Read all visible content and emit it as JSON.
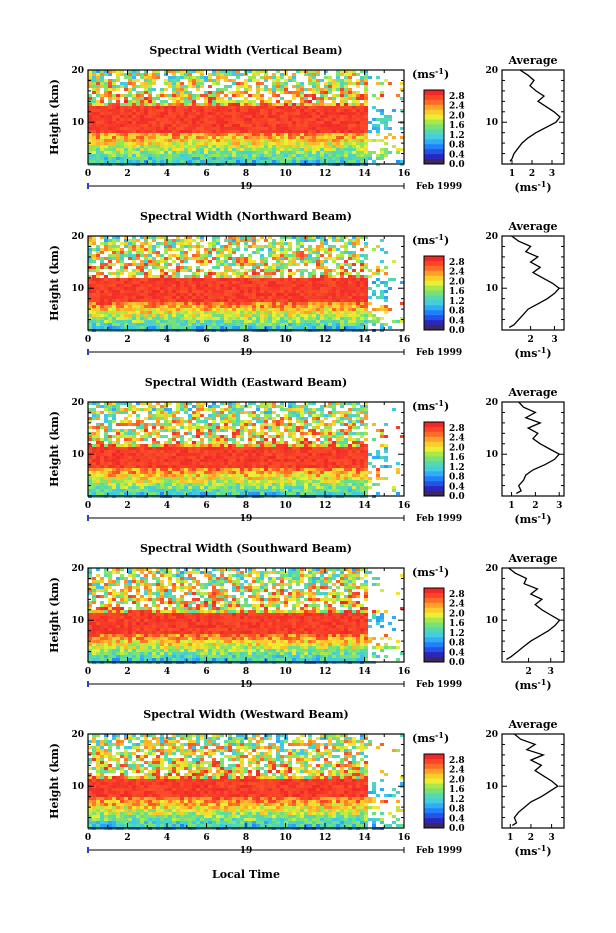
{
  "figure": {
    "date_label": "Feb 1999",
    "day_label": "19",
    "xlabel": "Local Time",
    "ylabel": "Height (km)",
    "colorbar_unit": "(ms",
    "colorbar_unit_exp": "-1",
    "colorbar_unit_close": ")",
    "colorbar_ticks": [
      "2.8",
      "2.4",
      "2.0",
      "1.6",
      "1.2",
      "0.8",
      "0.4",
      "0.0"
    ],
    "profile_title": "Average",
    "profile_xlabel": "(ms",
    "profile_xlabel_exp": "-1",
    "profile_xlabel_close": ")"
  },
  "chart_data": [
    {
      "type": "heatmap",
      "title": "Spectral Width (Vertical Beam)",
      "xlabel": "Local Time",
      "ylabel": "Height (km)",
      "x_ticks": [
        "0",
        "2",
        "4",
        "6",
        "8",
        "10",
        "12",
        "14",
        "16"
      ],
      "y_ticks": [
        "20",
        "10"
      ],
      "xlim": [
        0,
        16
      ],
      "ylim": [
        2,
        20
      ],
      "colorbar": {
        "label": "(ms-1)",
        "range": [
          0.0,
          3.0
        ],
        "colormap": "rainbow"
      },
      "field": {
        "core_height_km": [
          8.5,
          13.5
        ],
        "core_value": 2.9,
        "sparse_after_hour": 14
      },
      "average_profile": {
        "title": "Average",
        "x_ticks": [
          "1",
          "2",
          "3"
        ],
        "xlim": [
          0.5,
          3.6
        ],
        "height_km": [
          2.5,
          3,
          4,
          5,
          6,
          7,
          8,
          9,
          10,
          11,
          12,
          13,
          14,
          15,
          16,
          17,
          18,
          19,
          20
        ],
        "width": [
          0.9,
          1.0,
          1.1,
          1.3,
          1.5,
          1.8,
          2.2,
          2.7,
          3.2,
          3.4,
          3.1,
          2.7,
          2.3,
          2.6,
          2.2,
          1.9,
          2.1,
          1.8,
          1.4
        ]
      }
    },
    {
      "type": "heatmap",
      "title": "Spectral Width (Northward Beam)",
      "xlabel": "Local Time",
      "ylabel": "Height (km)",
      "x_ticks": [
        "0",
        "2",
        "4",
        "6",
        "8",
        "10",
        "12",
        "14",
        "16"
      ],
      "y_ticks": [
        "20",
        "10"
      ],
      "xlim": [
        0,
        16
      ],
      "ylim": [
        2,
        20
      ],
      "colorbar": {
        "label": "(ms-1)",
        "range": [
          0.0,
          3.0
        ],
        "colormap": "rainbow"
      },
      "field": {
        "core_height_km": [
          7.5,
          12
        ],
        "core_value": 2.9,
        "sparse_after_hour": 14
      },
      "average_profile": {
        "title": "Average",
        "x_ticks": [
          "2",
          "3"
        ],
        "xlim": [
          0.8,
          3.4
        ],
        "height_km": [
          2.5,
          3,
          4,
          5,
          6,
          7,
          8,
          9,
          10,
          11,
          12,
          13,
          14,
          15,
          16,
          17,
          18,
          19,
          20
        ],
        "width": [
          1.1,
          1.3,
          1.5,
          1.7,
          1.9,
          2.3,
          2.7,
          3.0,
          3.2,
          2.9,
          2.5,
          2.1,
          2.4,
          2.0,
          2.3,
          1.8,
          2.0,
          1.5,
          1.2
        ]
      }
    },
    {
      "type": "heatmap",
      "title": "Spectral Width (Eastward Beam)",
      "xlabel": "Local Time",
      "ylabel": "Height (km)",
      "x_ticks": [
        "0",
        "2",
        "4",
        "6",
        "8",
        "10",
        "12",
        "14",
        "16"
      ],
      "y_ticks": [
        "20",
        "10"
      ],
      "xlim": [
        0,
        16
      ],
      "ylim": [
        2,
        20
      ],
      "colorbar": {
        "label": "(ms-1)",
        "range": [
          0.0,
          3.0
        ],
        "colormap": "rainbow"
      },
      "field": {
        "core_height_km": [
          7.5,
          11.5
        ],
        "core_value": 2.9,
        "sparse_after_hour": 14
      },
      "average_profile": {
        "title": "Average",
        "x_ticks": [
          "1",
          "2",
          "3"
        ],
        "xlim": [
          0.6,
          3.2
        ],
        "height_km": [
          2.5,
          3,
          4,
          5,
          6,
          7,
          8,
          9,
          10,
          11,
          12,
          13,
          14,
          15,
          16,
          17,
          18,
          19,
          20
        ],
        "width": [
          1.2,
          1.4,
          1.3,
          1.5,
          1.6,
          1.9,
          2.4,
          2.8,
          3.0,
          2.6,
          2.2,
          1.9,
          2.1,
          1.7,
          2.2,
          1.6,
          2.0,
          1.5,
          1.3
        ]
      }
    },
    {
      "type": "heatmap",
      "title": "Spectral Width (Southward Beam)",
      "xlabel": "Local Time",
      "ylabel": "Height (km)",
      "x_ticks": [
        "0",
        "2",
        "4",
        "6",
        "8",
        "10",
        "12",
        "14",
        "16"
      ],
      "y_ticks": [
        "20",
        "10"
      ],
      "xlim": [
        0,
        16
      ],
      "ylim": [
        2,
        20
      ],
      "colorbar": {
        "label": "(ms-1)",
        "range": [
          0.0,
          3.0
        ],
        "colormap": "rainbow"
      },
      "field": {
        "core_height_km": [
          7.5,
          11.5
        ],
        "core_value": 2.9,
        "sparse_after_hour": 14
      },
      "average_profile": {
        "title": "Average",
        "x_ticks": [
          "2",
          "3"
        ],
        "xlim": [
          0.8,
          3.6
        ],
        "height_km": [
          2.5,
          3,
          4,
          5,
          6,
          7,
          8,
          9,
          10,
          11,
          12,
          13,
          14,
          15,
          16,
          17,
          18,
          19,
          20
        ],
        "width": [
          1.0,
          1.2,
          1.5,
          1.8,
          2.1,
          2.5,
          2.9,
          3.2,
          3.4,
          3.0,
          2.6,
          2.3,
          2.6,
          2.1,
          2.4,
          1.8,
          1.9,
          1.4,
          1.1
        ]
      }
    },
    {
      "type": "heatmap",
      "title": "Spectral Width (Westward Beam)",
      "xlabel": "Local Time",
      "ylabel": "Height (km)",
      "x_ticks": [
        "0",
        "2",
        "4",
        "6",
        "8",
        "10",
        "12",
        "14",
        "16"
      ],
      "y_ticks": [
        "20",
        "10"
      ],
      "xlim": [
        0,
        16
      ],
      "ylim": [
        2,
        20
      ],
      "colorbar": {
        "label": "(ms-1)",
        "range": [
          0.0,
          3.0
        ],
        "colormap": "rainbow"
      },
      "field": {
        "core_height_km": [
          8,
          11.5
        ],
        "core_value": 2.9,
        "sparse_after_hour": 14
      },
      "average_profile": {
        "title": "Average",
        "x_ticks": [
          "1",
          "2",
          "3"
        ],
        "xlim": [
          0.6,
          3.6
        ],
        "height_km": [
          2.5,
          3,
          4,
          5,
          6,
          7,
          8,
          9,
          10,
          11,
          12,
          13,
          14,
          15,
          16,
          17,
          18,
          19,
          20
        ],
        "width": [
          1.1,
          1.3,
          1.2,
          1.4,
          1.7,
          2.0,
          2.5,
          2.9,
          3.3,
          3.0,
          2.6,
          2.2,
          2.5,
          2.0,
          2.6,
          1.8,
          2.2,
          1.5,
          1.2
        ]
      }
    }
  ]
}
